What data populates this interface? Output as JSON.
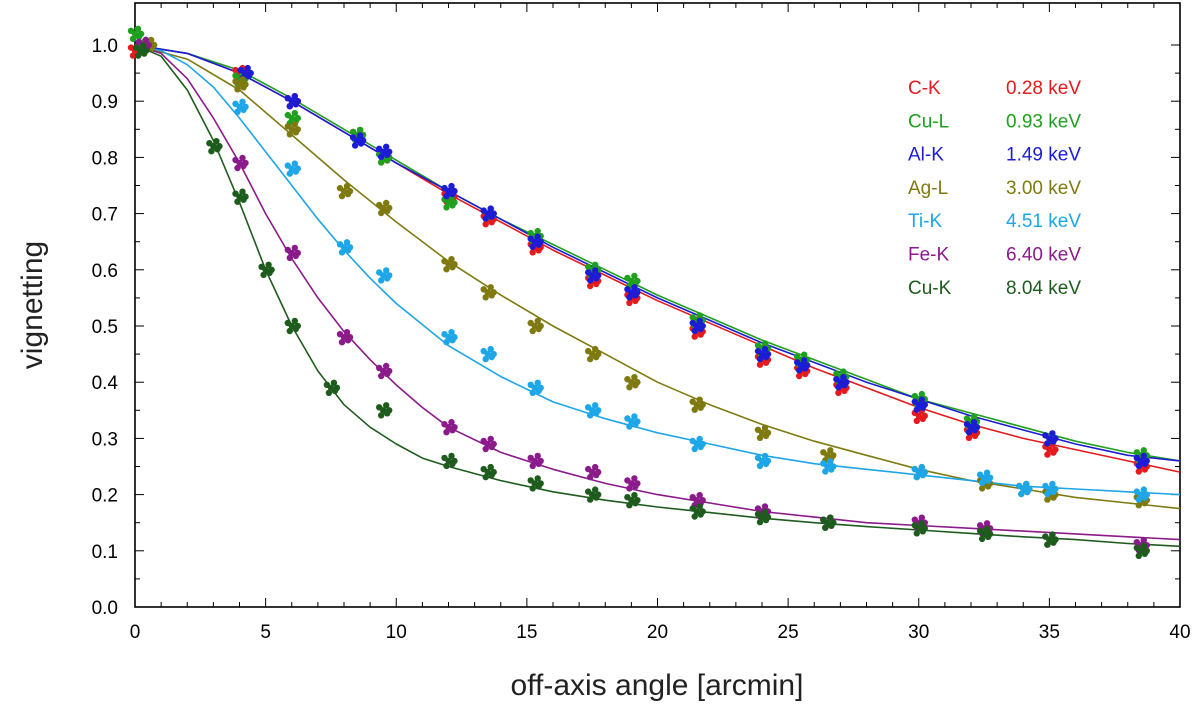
{
  "chart_data": {
    "type": "scatter",
    "title": "",
    "xlabel": "off-axis angle  [arcmin]",
    "ylabel": "vignetting",
    "xlim": [
      0,
      40
    ],
    "ylim": [
      0,
      1.05
    ],
    "xticks": [
      0,
      5,
      10,
      15,
      20,
      25,
      30,
      35,
      40
    ],
    "xtick_labels": [
      "0",
      "5",
      "10",
      "15",
      "20",
      "25",
      "30",
      "35",
      "40"
    ],
    "yticks": [
      0.0,
      0.1,
      0.2,
      0.3,
      0.4,
      0.5,
      0.6,
      0.7,
      0.8,
      0.9,
      1.0
    ],
    "ytick_labels": [
      "0.0",
      "0.1",
      "0.2",
      "0.3",
      "0.4",
      "0.5",
      "0.6",
      "0.7",
      "0.8",
      "0.9",
      "1.0"
    ],
    "grid": false,
    "legend_position": "top-right",
    "series": [
      {
        "name": "C-K",
        "energy": "0.28 keV",
        "color": "#e41a1c",
        "x": [
          0,
          4,
          6,
          8.5,
          9.5,
          12,
          13.5,
          15.3,
          17.5,
          19,
          21.5,
          24,
          25.5,
          27,
          30,
          32,
          35,
          38.5
        ],
        "values": [
          0.99,
          0.95,
          0.9,
          0.84,
          0.8,
          0.73,
          0.69,
          0.64,
          0.58,
          0.55,
          0.49,
          0.44,
          0.42,
          0.39,
          0.34,
          0.31,
          0.28,
          0.25
        ],
        "fit_x": [
          0,
          2,
          4,
          6,
          8,
          10,
          12,
          14,
          16,
          18,
          20,
          22,
          24,
          26,
          28,
          30,
          32,
          34,
          36,
          38,
          40
        ],
        "fit": [
          1.0,
          0.985,
          0.95,
          0.9,
          0.845,
          0.79,
          0.735,
          0.685,
          0.635,
          0.59,
          0.545,
          0.505,
          0.465,
          0.425,
          0.39,
          0.355,
          0.325,
          0.3,
          0.28,
          0.26,
          0.24
        ]
      },
      {
        "name": "Cu-L",
        "energy": "0.93 keV",
        "color": "#1fa01f",
        "x": [
          0,
          4,
          6,
          8.5,
          9.5,
          12,
          13.5,
          15.3,
          17.5,
          19,
          21.5,
          24,
          25.5,
          27,
          30,
          32,
          35,
          38.5
        ],
        "values": [
          1.02,
          0.94,
          0.87,
          0.84,
          0.8,
          0.72,
          0.7,
          0.66,
          0.6,
          0.58,
          0.51,
          0.46,
          0.44,
          0.41,
          0.37,
          0.33,
          0.3,
          0.27
        ],
        "fit_x": [
          0,
          2,
          4,
          6,
          8,
          10,
          12,
          14,
          16,
          18,
          20,
          22,
          24,
          26,
          28,
          30,
          32,
          34,
          36,
          38,
          40
        ],
        "fit": [
          1.0,
          0.985,
          0.955,
          0.905,
          0.85,
          0.795,
          0.74,
          0.69,
          0.645,
          0.6,
          0.555,
          0.515,
          0.475,
          0.44,
          0.405,
          0.37,
          0.345,
          0.32,
          0.295,
          0.275,
          0.26
        ]
      },
      {
        "name": "Al-K",
        "energy": "1.49 keV",
        "color": "#1c1cd6",
        "x": [
          0.3,
          4.2,
          6,
          8.5,
          9.5,
          12,
          13.5,
          15.3,
          17.5,
          19,
          21.5,
          24,
          25.5,
          27,
          30,
          32,
          35,
          38.5
        ],
        "values": [
          1.0,
          0.95,
          0.9,
          0.83,
          0.81,
          0.74,
          0.7,
          0.65,
          0.59,
          0.56,
          0.5,
          0.45,
          0.43,
          0.4,
          0.36,
          0.32,
          0.3,
          0.26
        ],
        "fit_x": [
          0,
          2,
          4,
          6,
          8,
          10,
          12,
          14,
          16,
          18,
          20,
          22,
          24,
          26,
          28,
          30,
          32,
          34,
          36,
          38,
          40
        ],
        "fit": [
          1.0,
          0.985,
          0.95,
          0.9,
          0.845,
          0.79,
          0.74,
          0.69,
          0.64,
          0.595,
          0.55,
          0.51,
          0.47,
          0.435,
          0.4,
          0.37,
          0.34,
          0.315,
          0.29,
          0.27,
          0.26
        ]
      },
      {
        "name": "Ag-L",
        "energy": "3.00 keV",
        "color": "#7f7a10",
        "x": [
          0.5,
          4,
          6,
          8,
          9.5,
          12,
          13.5,
          15.3,
          17.5,
          19,
          21.5,
          24,
          26.5,
          30,
          32.5,
          34,
          35,
          38.5
        ],
        "values": [
          1.0,
          0.93,
          0.85,
          0.74,
          0.71,
          0.61,
          0.56,
          0.5,
          0.45,
          0.4,
          0.36,
          0.31,
          0.27,
          0.24,
          0.22,
          0.21,
          0.2,
          0.19
        ],
        "fit_x": [
          0,
          2,
          4,
          6,
          8,
          10,
          12,
          14,
          16,
          18,
          20,
          22,
          24,
          26,
          28,
          30,
          32,
          34,
          36,
          38,
          40
        ],
        "fit": [
          1.0,
          0.975,
          0.92,
          0.84,
          0.76,
          0.685,
          0.615,
          0.555,
          0.5,
          0.45,
          0.4,
          0.36,
          0.325,
          0.295,
          0.27,
          0.245,
          0.225,
          0.21,
          0.195,
          0.185,
          0.175
        ]
      },
      {
        "name": "Ti-K",
        "energy": "4.51 keV",
        "color": "#1da6e8",
        "x": [
          0.3,
          4,
          6,
          8,
          9.5,
          12,
          13.5,
          15.3,
          17.5,
          19,
          21.5,
          24,
          26.5,
          30,
          32.5,
          34,
          35,
          38.5
        ],
        "values": [
          1.0,
          0.89,
          0.78,
          0.64,
          0.59,
          0.48,
          0.45,
          0.39,
          0.35,
          0.33,
          0.29,
          0.26,
          0.25,
          0.24,
          0.23,
          0.21,
          0.21,
          0.2
        ],
        "fit_x": [
          0,
          1,
          2,
          3,
          4,
          5,
          6,
          7,
          8,
          9,
          10,
          12,
          14,
          16,
          18,
          20,
          22,
          24,
          26,
          28,
          30,
          32,
          34,
          36,
          38,
          40
        ],
        "fit": [
          1.0,
          0.99,
          0.965,
          0.925,
          0.87,
          0.81,
          0.75,
          0.69,
          0.635,
          0.585,
          0.54,
          0.465,
          0.41,
          0.365,
          0.335,
          0.31,
          0.29,
          0.27,
          0.255,
          0.245,
          0.235,
          0.225,
          0.215,
          0.21,
          0.205,
          0.2
        ]
      },
      {
        "name": "Fe-K",
        "energy": "6.40 keV",
        "color": "#8b1a8b",
        "x": [
          0.3,
          4,
          6,
          8,
          9.5,
          12,
          13.5,
          15.3,
          17.5,
          19,
          21.5,
          24,
          26.5,
          30,
          32.5,
          35,
          38.5
        ],
        "values": [
          1.0,
          0.79,
          0.63,
          0.48,
          0.42,
          0.32,
          0.29,
          0.26,
          0.24,
          0.22,
          0.19,
          0.17,
          0.15,
          0.15,
          0.14,
          0.12,
          0.11
        ],
        "fit_x": [
          0,
          1,
          2,
          3,
          4,
          5,
          6,
          7,
          8,
          9,
          10,
          11,
          12,
          14,
          16,
          18,
          20,
          22,
          24,
          26,
          28,
          30,
          32,
          34,
          36,
          38,
          40
        ],
        "fit": [
          1.0,
          0.985,
          0.94,
          0.87,
          0.79,
          0.7,
          0.62,
          0.55,
          0.49,
          0.44,
          0.395,
          0.355,
          0.32,
          0.275,
          0.245,
          0.22,
          0.2,
          0.185,
          0.17,
          0.16,
          0.15,
          0.145,
          0.14,
          0.135,
          0.13,
          0.125,
          0.12
        ]
      },
      {
        "name": "Cu-K",
        "energy": "8.04 keV",
        "color": "#1e5c1e",
        "x": [
          0.2,
          3,
          4,
          5,
          6,
          7.5,
          9.5,
          12,
          13.5,
          15.3,
          17.5,
          19,
          21.5,
          24,
          26.5,
          30,
          32.5,
          35,
          38.5
        ],
        "values": [
          0.99,
          0.82,
          0.73,
          0.6,
          0.5,
          0.39,
          0.35,
          0.26,
          0.24,
          0.22,
          0.2,
          0.19,
          0.17,
          0.16,
          0.15,
          0.14,
          0.13,
          0.12,
          0.1
        ],
        "fit_x": [
          0,
          1,
          2,
          3,
          4,
          5,
          6,
          7,
          8,
          9,
          10,
          11,
          12,
          14,
          16,
          18,
          20,
          22,
          24,
          26,
          28,
          30,
          32,
          34,
          36,
          38,
          40
        ],
        "fit": [
          1.0,
          0.98,
          0.92,
          0.83,
          0.72,
          0.6,
          0.5,
          0.42,
          0.36,
          0.32,
          0.29,
          0.265,
          0.25,
          0.225,
          0.205,
          0.19,
          0.178,
          0.168,
          0.158,
          0.15,
          0.143,
          0.137,
          0.131,
          0.125,
          0.12,
          0.113,
          0.108
        ]
      }
    ]
  }
}
